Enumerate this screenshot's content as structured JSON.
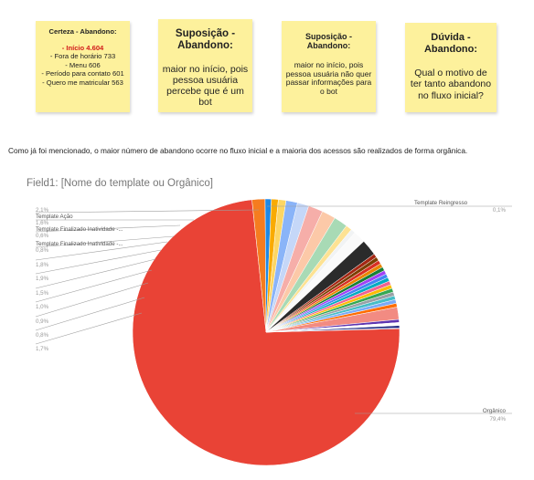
{
  "notes": [
    {
      "title": "Certeza - Abandono:",
      "highlight": "- Início 4.604",
      "lines": [
        "- Fora de horário 733",
        "- Menu 606",
        "- Período para contato 601",
        "- Quero me matricular 563"
      ]
    },
    {
      "title": "Suposição - Abandono:",
      "body": "maior no início, pois pessoa usuária percebe que é um bot"
    },
    {
      "title": "Suposição - Abandono:",
      "body": "maior no início, pois pessoa usuária não quer passar informações para o bot"
    },
    {
      "title": "Dúvida - Abandono:",
      "body": "Qual o motivo de ter tanto abandono no fluxo inicial?"
    }
  ],
  "caption": "Como já foi mencionado, o maior número de abandono ocorre no fluxo inicial e a maioria dos acessos são realizados de forma orgânica.",
  "chart_data": {
    "type": "pie",
    "title": "Field1: [Nome do template ou Orgânico]",
    "slices": [
      {
        "label": "Orgânico",
        "value": 79.4,
        "color": "#e94336"
      },
      {
        "label": "",
        "value": 1.7,
        "color": "#f57c1f"
      },
      {
        "label": "",
        "value": 0.8,
        "color": "#1e88e5"
      },
      {
        "label": "",
        "value": 0.9,
        "color": "#f9ab00"
      },
      {
        "label": "",
        "value": 1.0,
        "color": "#fdd663"
      },
      {
        "label": "",
        "value": 1.5,
        "color": "#8ab4f8"
      },
      {
        "label": "",
        "value": 1.5,
        "color": "#c5d7f8"
      },
      {
        "label": "",
        "value": 1.9,
        "color": "#f6aea9"
      },
      {
        "label": "",
        "value": 1.8,
        "color": "#fcc9a8"
      },
      {
        "label": "",
        "value": 1.8,
        "color": "#a8dab5"
      },
      {
        "label": "Template Finalizado Inatividade -...",
        "value": 0.8,
        "color": "#fde293"
      },
      {
        "label": "Template Finalizado Inatividade -...",
        "value": 0.6,
        "color": "#f1f3f4"
      },
      {
        "label": "Template Ação",
        "value": 1.6,
        "color": "#fafafa"
      },
      {
        "label": "",
        "value": 2.1,
        "color": "#2b2b2b"
      },
      {
        "label": "",
        "value": 0.5,
        "color": "#a52714"
      },
      {
        "label": "",
        "value": 0.5,
        "color": "#7b3f00"
      },
      {
        "label": "",
        "value": 0.5,
        "color": "#d93025"
      },
      {
        "label": "",
        "value": 0.5,
        "color": "#ea8600"
      },
      {
        "label": "",
        "value": 0.5,
        "color": "#188038"
      },
      {
        "label": "",
        "value": 0.5,
        "color": "#a142f4"
      },
      {
        "label": "",
        "value": 0.5,
        "color": "#4285f4"
      },
      {
        "label": "",
        "value": 0.5,
        "color": "#00acc1"
      },
      {
        "label": "",
        "value": 0.5,
        "color": "#f06292"
      },
      {
        "label": "",
        "value": 0.5,
        "color": "#fbbc04"
      },
      {
        "label": "",
        "value": 0.5,
        "color": "#34a853"
      },
      {
        "label": "",
        "value": 0.5,
        "color": "#9aa0a6"
      },
      {
        "label": "",
        "value": 0.5,
        "color": "#46bdc6"
      },
      {
        "label": "",
        "value": 0.5,
        "color": "#7baaf7"
      },
      {
        "label": "",
        "value": 0.5,
        "color": "#ff6d01"
      },
      {
        "label": "",
        "value": 1.6,
        "color": "#f28b82"
      },
      {
        "label": "",
        "value": 0.4,
        "color": "#5e35b1"
      },
      {
        "label": "",
        "value": 0.4,
        "color": "#ffffff"
      },
      {
        "label": "",
        "value": 0.3,
        "color": "#1a237e"
      },
      {
        "label": "Template Reingresso",
        "value": 0.1,
        "color": "#3949ab"
      }
    ],
    "callouts": [
      {
        "label": "Template Reingresso",
        "pct": "0,1%"
      },
      {
        "label": "",
        "pct": "2,1%"
      },
      {
        "label": "Template Ação",
        "pct": "1,6%"
      },
      {
        "label": "Template Finalizado Inatividade -...",
        "pct": "0,6%"
      },
      {
        "label": "Template Finalizado Inatividade -...",
        "pct": "0,8%"
      },
      {
        "label": "",
        "pct": "1,8%"
      },
      {
        "label": "",
        "pct": "1,9%"
      },
      {
        "label": "",
        "pct": "1,5%"
      },
      {
        "label": "",
        "pct": "1,0%"
      },
      {
        "label": "",
        "pct": "0,9%"
      },
      {
        "label": "",
        "pct": "0,8%"
      },
      {
        "label": "",
        "pct": "1,7%"
      },
      {
        "label": "Orgânico",
        "pct": "79,4%"
      }
    ],
    "legend": "none"
  }
}
